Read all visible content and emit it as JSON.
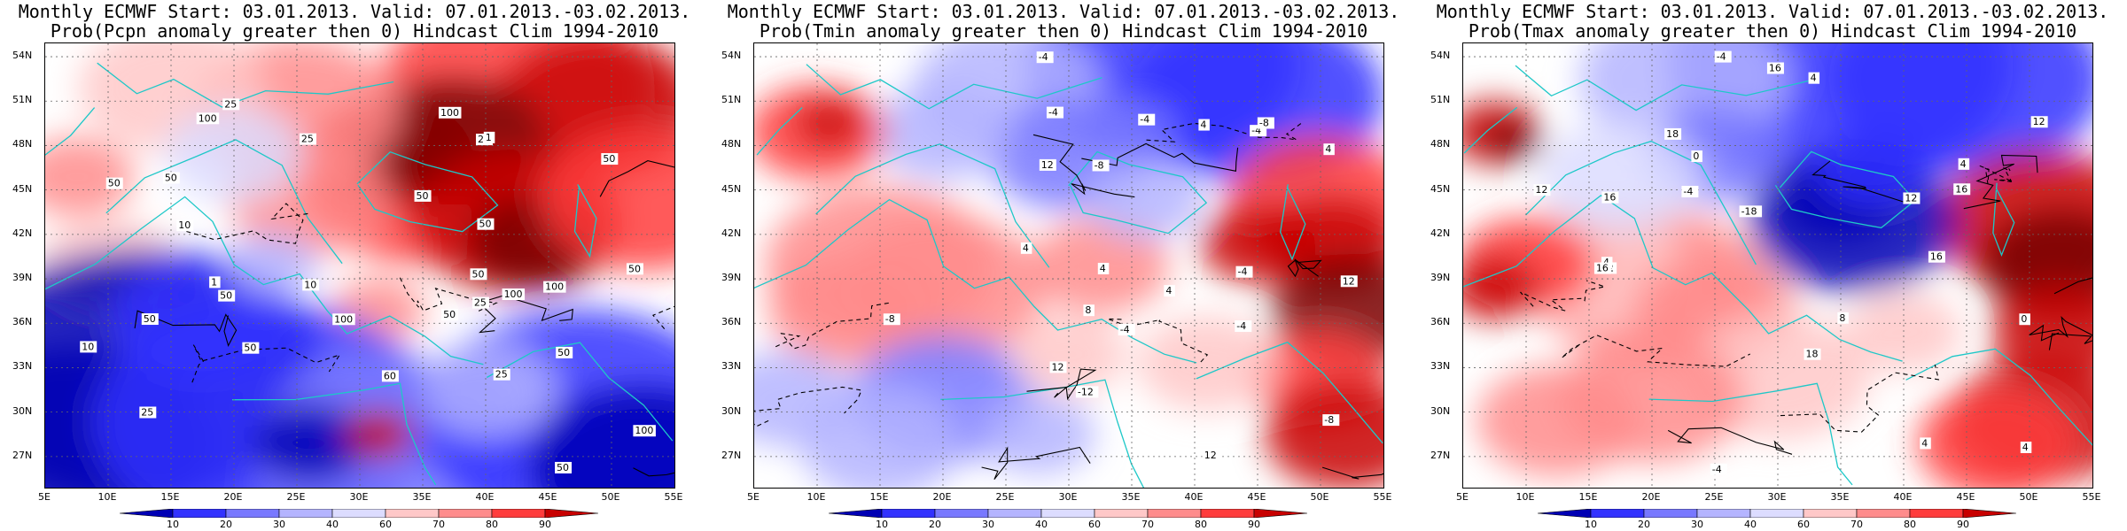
{
  "panels": [
    {
      "title1": "Monthly ECMWF Start: 03.01.2013. Valid: 07.01.2013.-03.02.2013.",
      "title2": "Prob(Pcpn anomaly greater then 0) Hindcast Clim 1994-2010",
      "contours": [
        "50",
        "50",
        "50",
        "50",
        "60",
        "50",
        "25",
        "50",
        "100",
        "100",
        "50",
        "50",
        "100",
        "100",
        "100",
        "50",
        "100",
        "50",
        "50",
        "10",
        "25",
        "25",
        "10",
        "10",
        "50",
        "50",
        "25",
        "1",
        "1",
        "25",
        "25"
      ],
      "scheme": "pcpn"
    },
    {
      "title1": "Monthly ECMWF Start: 03.01.2013. Valid: 07.01.2013.-03.02.2013.",
      "title2": "Prob(Tmin anomaly greater then 0) Hindcast Clim 1994-2010",
      "contours": [
        "-12",
        "-8",
        "-4",
        "-4",
        "-4",
        "4",
        "-4",
        "4",
        "-8",
        "-4",
        "4",
        "12",
        "12",
        "12",
        "8",
        "-8",
        "-4",
        "4",
        "12",
        "4",
        "-4",
        "-8"
      ],
      "scheme": "tmin"
    },
    {
      "title1": "Monthly ECMWF Start: 03.01.2013. Valid: 07.01.2013.-03.02.2013.",
      "title2": "Prob(Tmax anomaly greater then 0) Hindcast Clim 1994-2010",
      "contours": [
        "-4",
        "-4",
        "4",
        "-4",
        "0",
        "4",
        "12",
        "4",
        "0",
        "12",
        "16",
        "16",
        "16",
        "12",
        "12",
        "16",
        "16",
        "4",
        "18",
        "-18",
        "18",
        "8",
        "4"
      ],
      "scheme": "tmax"
    }
  ],
  "axes": {
    "lat_ticks": [
      "54N",
      "51N",
      "48N",
      "45N",
      "42N",
      "39N",
      "36N",
      "33N",
      "30N",
      "27N"
    ],
    "lon_ticks": [
      "5E",
      "10E",
      "15E",
      "20E",
      "25E",
      "30E",
      "35E",
      "40E",
      "45E",
      "50E",
      "55E"
    ]
  },
  "colorbar": {
    "labels": [
      "10",
      "20",
      "30",
      "40",
      "60",
      "70",
      "80",
      "90"
    ],
    "colors": [
      "#0000b4",
      "#3232ff",
      "#7878ff",
      "#b4b4ff",
      "#dcdcff",
      "#ffffff",
      "#ffc8c8",
      "#ff8c8c",
      "#ff3c3c",
      "#c80000",
      "#780000"
    ]
  }
}
